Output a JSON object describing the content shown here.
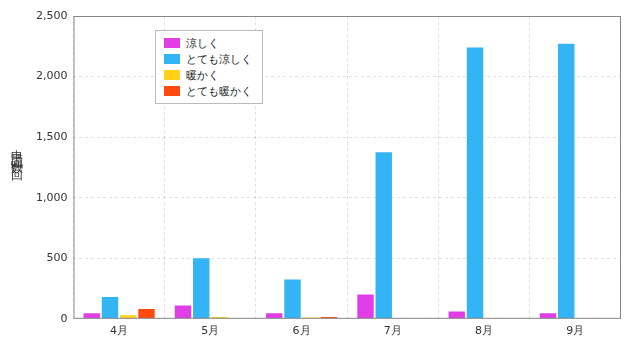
{
  "chart_data": {
    "type": "bar",
    "y_label": "申請回数［回］",
    "categories": [
      "4月",
      "5月",
      "6月",
      "7月",
      "8月",
      "9月"
    ],
    "series": [
      {
        "name": "涼しく",
        "color": "#e23ee8",
        "values": [
          45,
          110,
          45,
          200,
          60,
          45
        ]
      },
      {
        "name": "とても涼しく",
        "color": "#33b4f5",
        "values": [
          180,
          500,
          325,
          1375,
          2240,
          2270
        ]
      },
      {
        "name": "暖かく",
        "color": "#ffd21a",
        "values": [
          30,
          15,
          10,
          0,
          0,
          0
        ]
      },
      {
        "name": "とても暖かく",
        "color": "#ff4a10",
        "values": [
          80,
          5,
          15,
          0,
          0,
          0
        ]
      }
    ],
    "ylim": [
      0,
      2500
    ],
    "yticks": [
      0,
      500,
      {
        "value": 1000,
        "label": "1,000"
      },
      {
        "value": 1500,
        "label": "1,500"
      },
      {
        "value": 2000,
        "label": "2,000"
      },
      {
        "value": 2500,
        "label": "2,500"
      }
    ],
    "grid": true,
    "legend": "upper left"
  }
}
